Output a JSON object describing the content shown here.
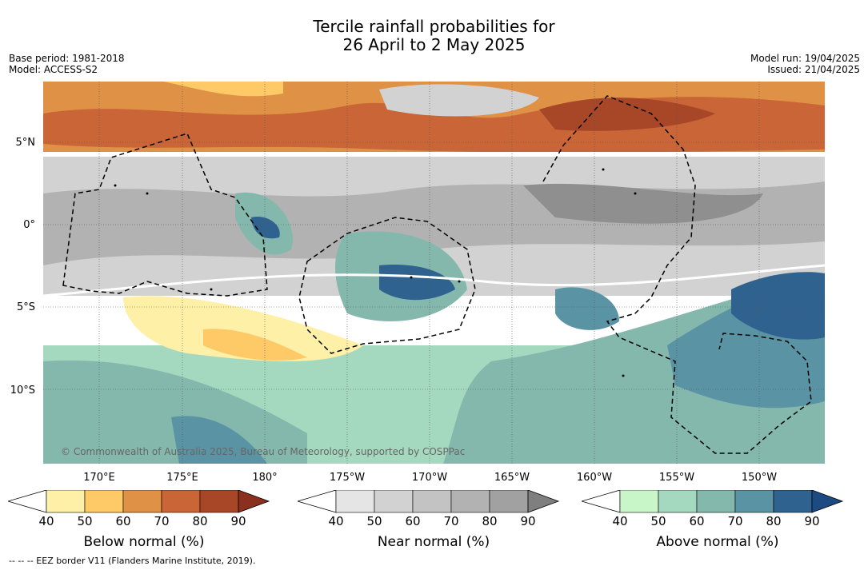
{
  "title": {
    "line1": "Tercile rainfall probabilities for",
    "line2": "26 April to 2 May 2025"
  },
  "meta_left": {
    "base_period": "Base period: 1981-2018",
    "model": "Model: ACCESS-S2"
  },
  "meta_right": {
    "model_run": "Model run: 19/04/2025",
    "issued": "Issued: 21/04/2025"
  },
  "lat_labels": [
    "5°N",
    "0°",
    "5°S",
    "10°S"
  ],
  "lon_labels": [
    "170°E",
    "175°E",
    "180°",
    "175°W",
    "170°W",
    "165°W",
    "160°W",
    "155°W",
    "150°W"
  ],
  "copyright": "© Commonwealth of Australia 2025, Bureau of Meteorology, supported by COSPPac",
  "footer": "--  --  -- EEZ border V11 (Flanders Marine Institute, 2019).",
  "colorbars": [
    {
      "label": "Below normal (%)",
      "ticks": [
        "40",
        "50",
        "60",
        "70",
        "80",
        "90"
      ],
      "colors": [
        "#fff0a8",
        "#fec967",
        "#df9145",
        "#c96536",
        "#a84628",
        "#8b2f1f"
      ]
    },
    {
      "label": "Near normal (%)",
      "ticks": [
        "40",
        "50",
        "60",
        "70",
        "80",
        "90"
      ],
      "colors": [
        "#e5e5e5",
        "#d2d2d2",
        "#c3c3c3",
        "#b2b2b2",
        "#a1a1a1",
        "#7f7f7f"
      ]
    },
    {
      "label": "Above normal (%)",
      "ticks": [
        "40",
        "50",
        "60",
        "70",
        "80",
        "90"
      ],
      "colors": [
        "#c8f6c8",
        "#a5d9bf",
        "#84b8ac",
        "#5a94a4",
        "#30628f",
        "#1c4a82"
      ]
    }
  ]
}
